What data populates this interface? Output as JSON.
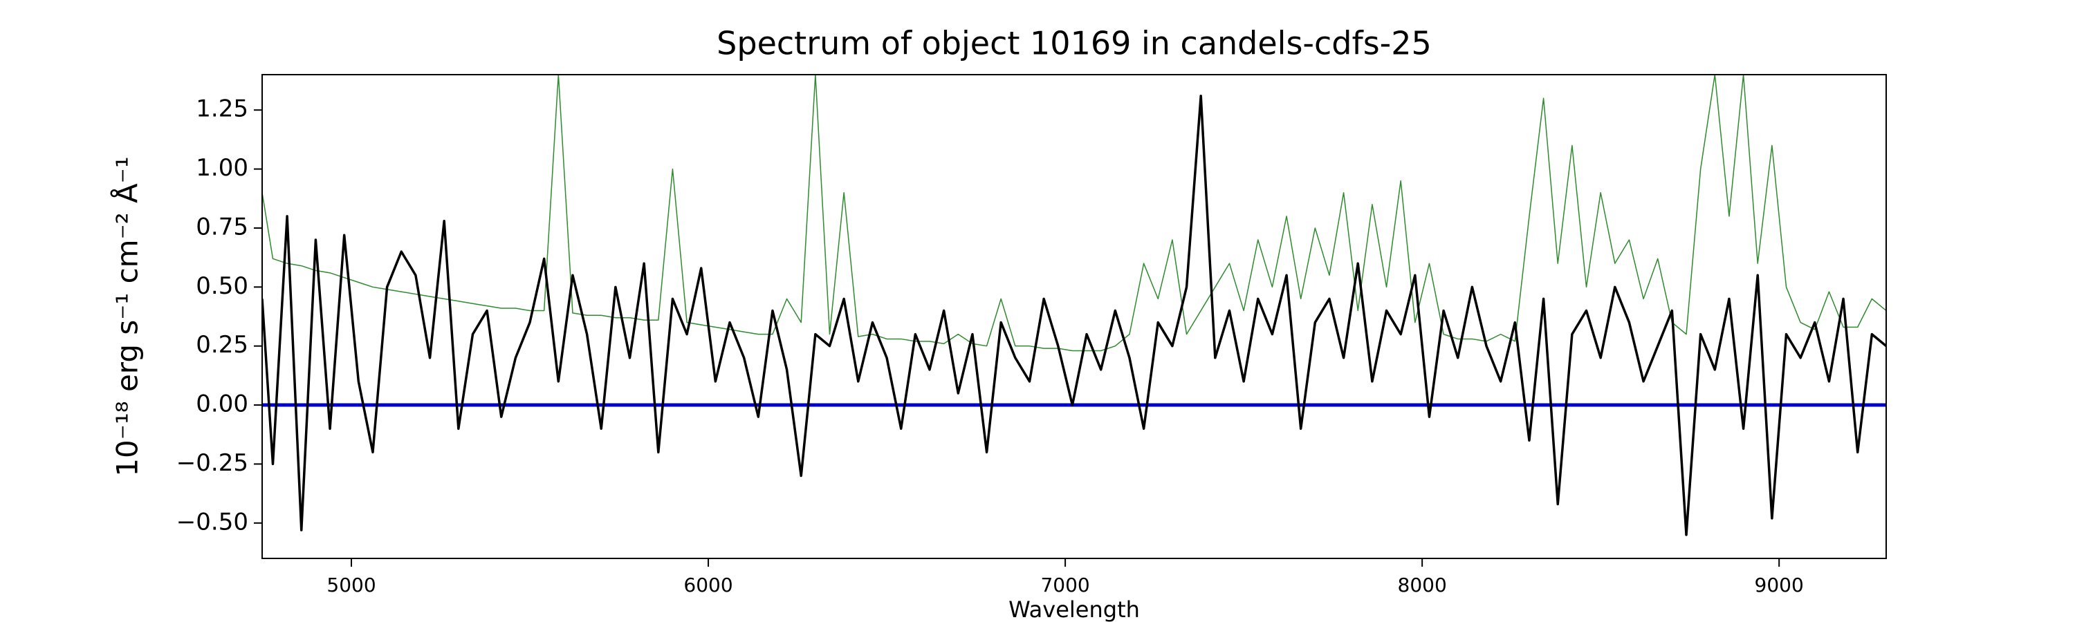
{
  "chart_data": {
    "type": "line",
    "title": "Spectrum of object 10169 in candels-cdfs-25",
    "x_label": "Wavelength",
    "y_label": "10⁻¹⁸ erg s⁻¹ cm⁻² Å⁻¹",
    "x": [
      4750,
      4780,
      4820,
      4860,
      4900,
      4940,
      4980,
      5020,
      5060,
      5100,
      5140,
      5180,
      5220,
      5260,
      5300,
      5340,
      5380,
      5420,
      5460,
      5500,
      5540,
      5580,
      5620,
      5660,
      5700,
      5740,
      5780,
      5820,
      5860,
      5900,
      5940,
      5980,
      6020,
      6060,
      6100,
      6140,
      6180,
      6220,
      6260,
      6300,
      6340,
      6380,
      6420,
      6460,
      6500,
      6540,
      6580,
      6620,
      6660,
      6700,
      6740,
      6780,
      6820,
      6860,
      6900,
      6940,
      6980,
      7020,
      7060,
      7100,
      7140,
      7180,
      7220,
      7260,
      7300,
      7340,
      7380,
      7420,
      7460,
      7500,
      7540,
      7580,
      7620,
      7660,
      7700,
      7740,
      7780,
      7820,
      7860,
      7900,
      7940,
      7980,
      8020,
      8060,
      8100,
      8140,
      8180,
      8220,
      8260,
      8300,
      8340,
      8380,
      8420,
      8460,
      8500,
      8540,
      8580,
      8620,
      8660,
      8700,
      8740,
      8780,
      8820,
      8860,
      8900,
      8940,
      8980,
      9020,
      9060,
      9100,
      9140,
      9180,
      9220,
      9260,
      9300
    ],
    "series": [
      {
        "color": "#2e8b2e",
        "width": 1.5,
        "values": [
          0.9,
          0.62,
          0.6,
          0.59,
          0.57,
          0.56,
          0.54,
          0.52,
          0.5,
          0.49,
          0.48,
          0.47,
          0.46,
          0.45,
          0.44,
          0.43,
          0.42,
          0.41,
          0.41,
          0.4,
          0.4,
          1.4,
          0.39,
          0.38,
          0.38,
          0.37,
          0.37,
          0.36,
          0.36,
          1.0,
          0.35,
          0.34,
          0.33,
          0.32,
          0.31,
          0.3,
          0.3,
          0.45,
          0.35,
          1.4,
          0.3,
          0.9,
          0.29,
          0.3,
          0.28,
          0.28,
          0.27,
          0.27,
          0.26,
          0.3,
          0.26,
          0.25,
          0.45,
          0.25,
          0.25,
          0.24,
          0.24,
          0.23,
          0.23,
          0.23,
          0.25,
          0.3,
          0.6,
          0.45,
          0.7,
          0.3,
          0.4,
          0.5,
          0.6,
          0.4,
          0.7,
          0.5,
          0.8,
          0.45,
          0.75,
          0.55,
          0.9,
          0.4,
          0.85,
          0.5,
          0.95,
          0.35,
          0.6,
          0.3,
          0.28,
          0.28,
          0.27,
          0.3,
          0.27,
          0.8,
          1.3,
          0.6,
          1.1,
          0.5,
          0.9,
          0.6,
          0.7,
          0.45,
          0.62,
          0.35,
          0.3,
          1.0,
          1.4,
          0.8,
          1.4,
          0.6,
          1.1,
          0.5,
          0.35,
          0.32,
          0.48,
          0.33,
          0.33,
          0.45,
          0.4
        ]
      },
      {
        "color": "#0000cc",
        "width": 5,
        "x": [
          4750,
          9300
        ],
        "values": [
          0,
          0
        ]
      },
      {
        "color": "#000000",
        "width": 3.5,
        "values": [
          0.45,
          -0.25,
          0.8,
          -0.53,
          0.7,
          -0.1,
          0.72,
          0.1,
          -0.2,
          0.5,
          0.65,
          0.55,
          0.2,
          0.78,
          -0.1,
          0.3,
          0.4,
          -0.05,
          0.2,
          0.35,
          0.62,
          0.1,
          0.55,
          0.3,
          -0.1,
          0.5,
          0.2,
          0.6,
          -0.2,
          0.45,
          0.3,
          0.58,
          0.1,
          0.35,
          0.2,
          -0.05,
          0.4,
          0.15,
          -0.3,
          0.3,
          0.25,
          0.45,
          0.1,
          0.35,
          0.2,
          -0.1,
          0.3,
          0.15,
          0.4,
          0.05,
          0.3,
          -0.2,
          0.35,
          0.2,
          0.1,
          0.45,
          0.25,
          0.0,
          0.3,
          0.15,
          0.4,
          0.2,
          -0.1,
          0.35,
          0.25,
          0.5,
          1.31,
          0.2,
          0.4,
          0.1,
          0.45,
          0.3,
          0.55,
          -0.1,
          0.35,
          0.45,
          0.2,
          0.6,
          0.1,
          0.4,
          0.3,
          0.55,
          -0.05,
          0.4,
          0.2,
          0.5,
          0.25,
          0.1,
          0.35,
          -0.15,
          0.45,
          -0.42,
          0.3,
          0.4,
          0.2,
          0.5,
          0.35,
          0.1,
          0.25,
          0.4,
          -0.55,
          0.3,
          0.15,
          0.45,
          -0.1,
          0.55,
          -0.48,
          0.3,
          0.2,
          0.35,
          0.1,
          0.45,
          -0.2,
          0.3,
          0.25
        ]
      }
    ],
    "xlim": [
      4750,
      9300
    ],
    "ylim": [
      -0.65,
      1.4
    ],
    "xticks": [
      5000,
      6000,
      7000,
      8000,
      9000
    ],
    "yticks": [
      {
        "value": -0.5,
        "label": "−0.50"
      },
      {
        "value": -0.25,
        "label": "−0.25"
      },
      {
        "value": 0,
        "label": "0.00"
      },
      {
        "value": 0.25,
        "label": "0.25"
      },
      {
        "value": 0.5,
        "label": "0.50"
      },
      {
        "value": 0.75,
        "label": "0.75"
      },
      {
        "value": 1,
        "label": "1.00"
      },
      {
        "value": 1.25,
        "label": "1.25"
      }
    ],
    "grid": false
  }
}
